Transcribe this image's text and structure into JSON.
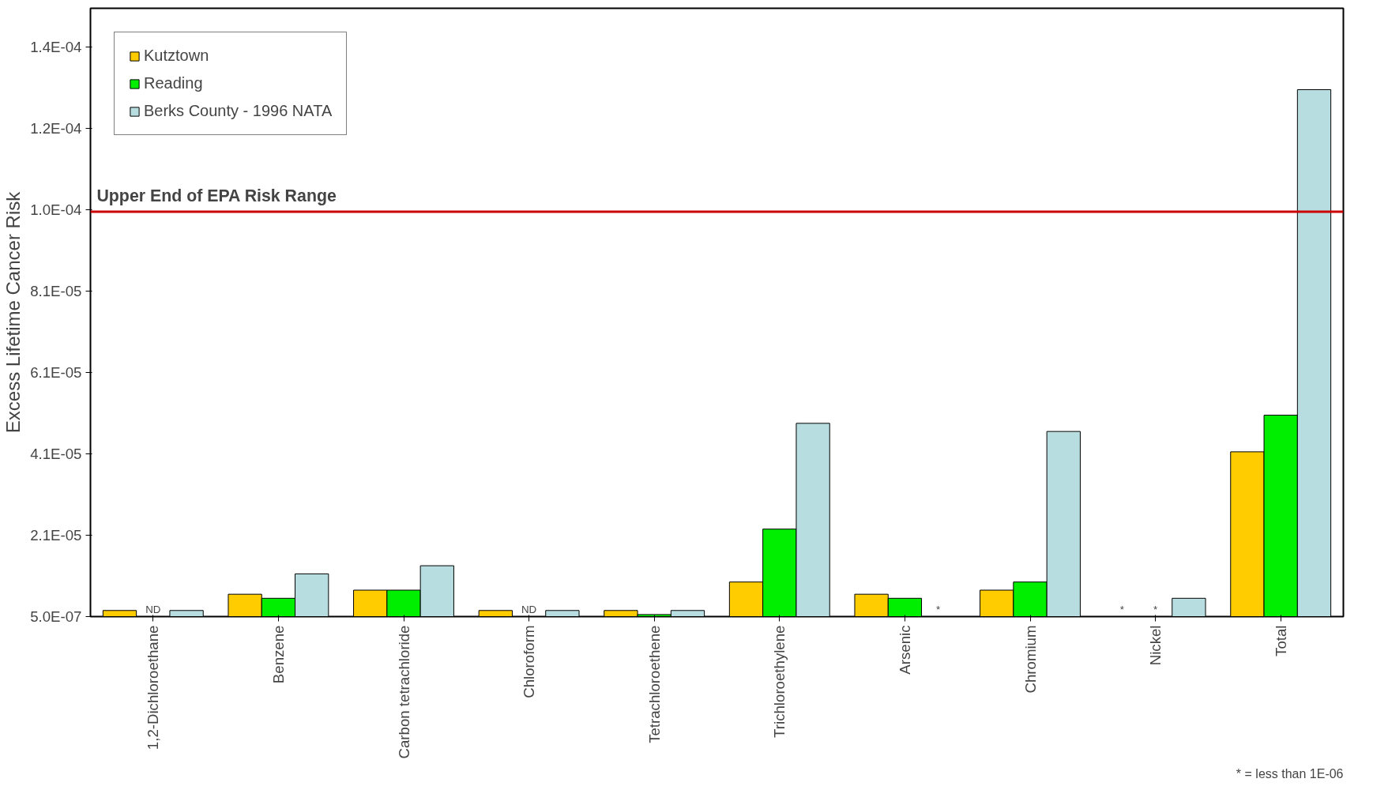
{
  "chart_data": {
    "type": "bar",
    "ylabel": "Excess Lifetime Cancer Risk",
    "categories": [
      "1,2-Dichloroethane",
      "Benzene",
      "Carbon tetrachloride",
      "Chloroform",
      "Tetrachloroethene",
      "Trichloroethylene",
      "Arsenic",
      "Chromium",
      "Nickel",
      "Total"
    ],
    "series": [
      {
        "name": "Kutztown",
        "color": "#ffcc00",
        "values": [
          2e-06,
          6e-06,
          7e-06,
          2e-06,
          2e-06,
          9e-06,
          6e-06,
          7e-06,
          null,
          4.1e-05
        ],
        "value_labels": [
          null,
          null,
          null,
          null,
          null,
          null,
          null,
          null,
          "*",
          null
        ]
      },
      {
        "name": "Reading",
        "color": "#00ee00",
        "values": [
          null,
          5e-06,
          7e-06,
          null,
          1e-06,
          2.2e-05,
          5e-06,
          9e-06,
          null,
          5e-05
        ],
        "value_labels": [
          "ND",
          null,
          null,
          "ND",
          null,
          null,
          null,
          null,
          "*",
          null
        ]
      },
      {
        "name": "Berks County - 1996 NATA",
        "color": "#b7dde0",
        "values": [
          2e-06,
          1.1e-05,
          1.3e-05,
          2e-06,
          2e-06,
          4.8e-05,
          null,
          4.6e-05,
          5e-06,
          0.00013
        ],
        "value_labels": [
          null,
          null,
          null,
          null,
          null,
          null,
          "*",
          null,
          null,
          null
        ]
      }
    ],
    "ylim": [
      5e-07,
      0.00015
    ],
    "yticks": [
      {
        "value": 5e-07,
        "label": "5.0E-07"
      },
      {
        "value": 2.05e-05,
        "label": "2.1E-05"
      },
      {
        "value": 4.05e-05,
        "label": "4.1E-05"
      },
      {
        "value": 6.05e-05,
        "label": "6.1E-05"
      },
      {
        "value": 8.05e-05,
        "label": "8.1E-05"
      },
      {
        "value": 0.0001005,
        "label": "1.0E-04"
      },
      {
        "value": 0.0001205,
        "label": "1.2E-04"
      },
      {
        "value": 0.0001405,
        "label": "1.4E-04"
      }
    ],
    "ref_lines": [
      {
        "axis": "y",
        "value": 0.0001,
        "label": "Upper End of EPA Risk Range",
        "color": "#cc0000"
      }
    ],
    "annotations": [
      "* = less than 1E-06"
    ],
    "legend": "top left",
    "grid": false
  }
}
